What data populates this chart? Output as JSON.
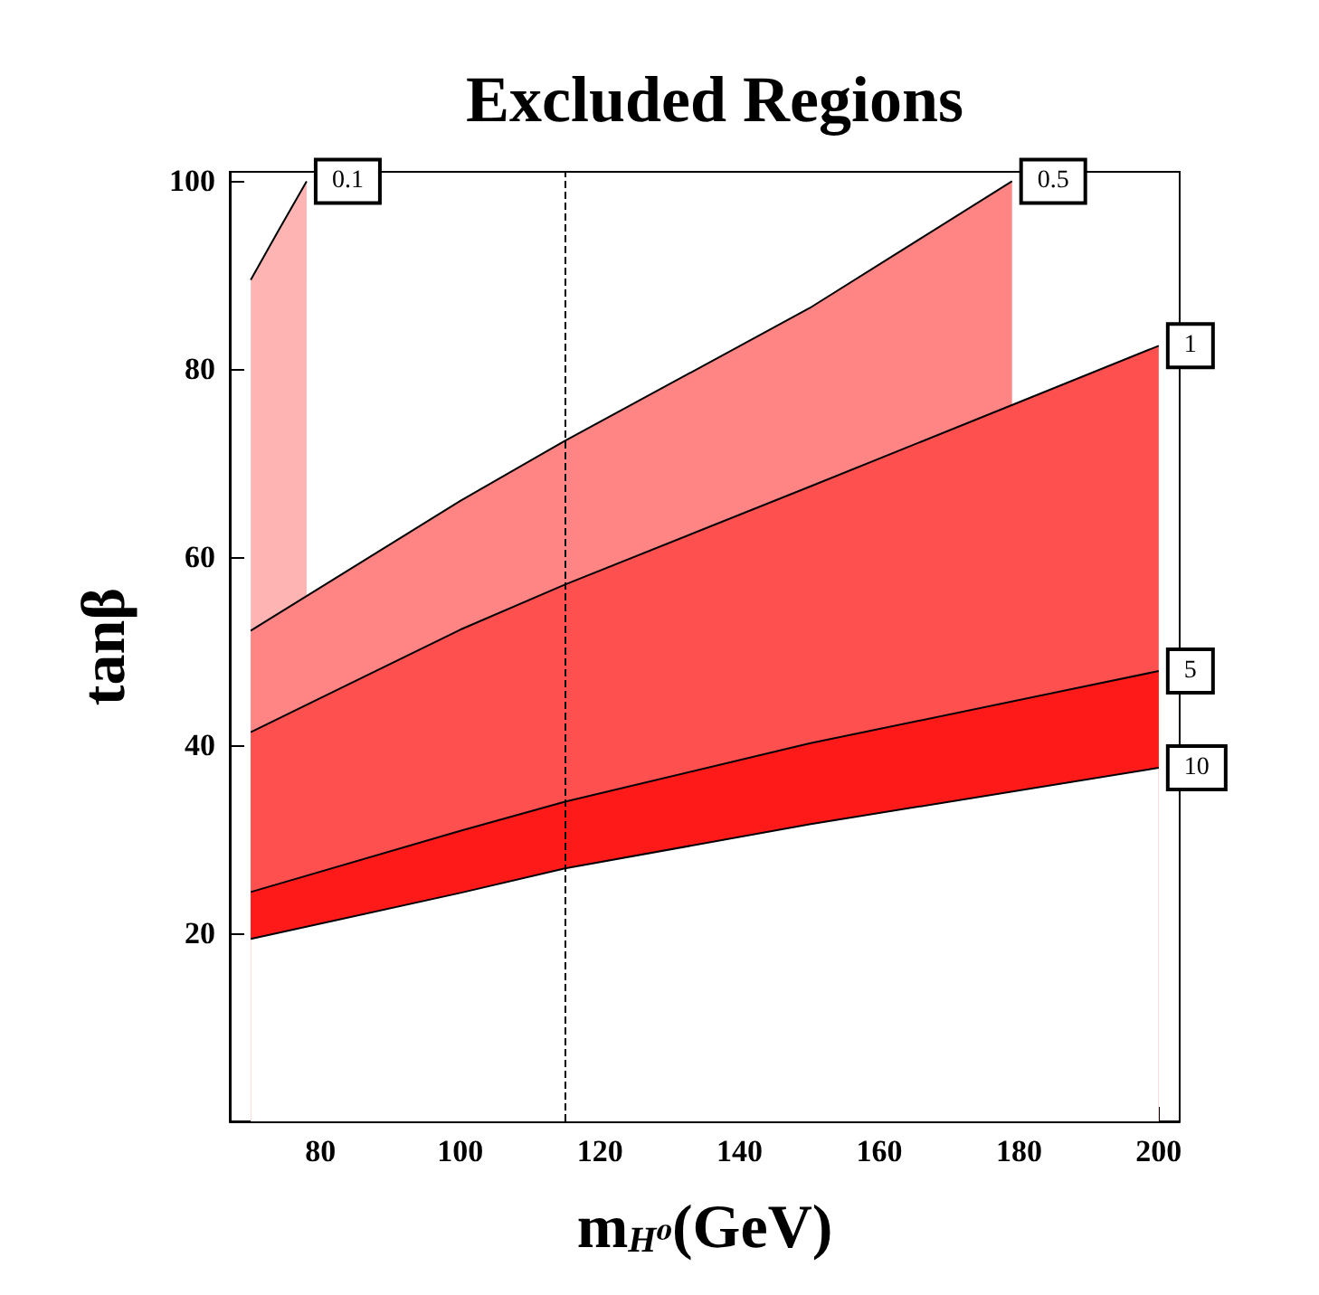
{
  "chart_data": {
    "type": "area",
    "title": "Excluded Regions",
    "xlabel": "m$_{H⁰}$(GeV)",
    "ylabel": "tanβ",
    "xlim": [
      67,
      203
    ],
    "ylim": [
      0,
      101
    ],
    "xticks": [
      80,
      100,
      120,
      140,
      160,
      180,
      200
    ],
    "yticks": [
      20,
      40,
      60,
      80,
      100
    ],
    "grid": false,
    "legend": false,
    "marker": "none",
    "ref_lines": [
      {
        "axis": "x",
        "value": 115,
        "line_style": "dashed",
        "color": "#000000"
      }
    ],
    "series": [
      {
        "name": "0.1",
        "color": "#ffb4b4",
        "x": [
          70,
          74,
          78
        ],
        "values": [
          89.5,
          94.8,
          100
        ]
      },
      {
        "name": "0.5",
        "color": "#ff8585",
        "x": [
          70,
          100,
          115,
          150,
          179
        ],
        "values": [
          52.2,
          66.0,
          72.4,
          86.5,
          100
        ]
      },
      {
        "name": "1",
        "color": "#ff5050",
        "x": [
          70,
          100,
          115,
          150,
          180,
          200
        ],
        "values": [
          41.4,
          52.3,
          57.1,
          67.5,
          76.5,
          82.5
        ]
      },
      {
        "name": "5",
        "color": "#ff1a1a",
        "x": [
          70,
          100,
          115,
          150,
          200
        ],
        "values": [
          24.4,
          30.9,
          34.0,
          40.2,
          47.9
        ]
      },
      {
        "name": "10",
        "color": "#ffffff",
        "x": [
          70,
          100,
          115,
          150,
          200
        ],
        "values": [
          19.4,
          24.3,
          26.9,
          31.6,
          37.6
        ]
      }
    ]
  }
}
